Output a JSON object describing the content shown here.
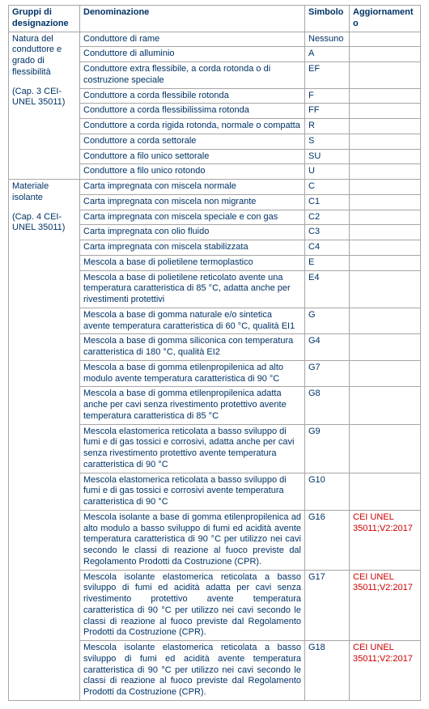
{
  "headers": {
    "c1": "Gruppi di designazione",
    "c2": "Denominazione",
    "c3": "Simbolo",
    "c4": "Aggiornamento"
  },
  "groups": [
    {
      "title": "Natura del conduttore e grado di flessibilità",
      "note": "(Cap. 3 CEI-UNEL 35011)",
      "rows": [
        {
          "d": "Conduttore di rame",
          "s": "Nessuno",
          "u": ""
        },
        {
          "d": "Conduttore di alluminio",
          "s": "A",
          "u": ""
        },
        {
          "d": "Conduttore extra flessibile, a corda rotonda o di costruzione speciale",
          "s": "EF",
          "u": ""
        },
        {
          "d": "Conduttore a corda flessibile rotonda",
          "s": "F",
          "u": ""
        },
        {
          "d": "Conduttore a corda flessibilissima rotonda",
          "s": "FF",
          "u": ""
        },
        {
          "d": "Conduttore a corda rigida rotonda, normale o compatta",
          "s": "R",
          "u": ""
        },
        {
          "d": "Conduttore a corda settorale",
          "s": "S",
          "u": ""
        },
        {
          "d": "Conduttore a filo unico settorale",
          "s": "SU",
          "u": ""
        },
        {
          "d": "Conduttore a filo unico rotondo",
          "s": "U",
          "u": ""
        }
      ]
    },
    {
      "title": "Materiale isolante",
      "note": "(Cap. 4 CEI-UNEL 35011)",
      "rows": [
        {
          "d": "Carta impregnata con miscela normale",
          "s": "C",
          "u": ""
        },
        {
          "d": "Carta impregnata con miscela non migrante",
          "s": "C1",
          "u": ""
        },
        {
          "d": "Carta impregnata con miscela speciale e con gas",
          "s": "C2",
          "u": ""
        },
        {
          "d": "Carta impregnata con olio fluido",
          "s": "C3",
          "u": ""
        },
        {
          "d": "Carta impregnata con miscela stabilizzata",
          "s": "C4",
          "u": ""
        },
        {
          "d": "Mescola a base di polietilene termoplastico",
          "s": "E",
          "u": ""
        },
        {
          "d": "Mescola a base di polietilene reticolato avente una temperatura caratteristica di 85 °C, adatta anche per rivestimenti protettivi",
          "s": "E4",
          "u": ""
        },
        {
          "d": "Mescola a base di gomma naturale e/o sintetica avente temperatura caratteristica di 60 °C, qualità EI1",
          "s": "G",
          "u": ""
        },
        {
          "d": "Mescola a base di gomma siliconica con temperatura caratteristica di 180 °C, qualità EI2",
          "s": "G4",
          "u": ""
        },
        {
          "d": "Mescola a base di gomma etilenpropilenica ad alto modulo avente temperatura caratteristica di 90 °C",
          "s": "G7",
          "u": ""
        },
        {
          "d": "Mescola a base di gomma etilenpropilenica adatta anche per cavi senza rivestimento protettivo avente temperatura caratteristica di 85 °C",
          "s": "G8",
          "u": ""
        },
        {
          "d": "Mescola elastomerica reticolata a basso sviluppo di fumi e di gas tossici e corrosivi, adatta anche per cavi senza rivestimento protettivo avente temperatura caratteristica di 90 °C",
          "s": "G9",
          "u": ""
        },
        {
          "d": "Mescola elastomerica reticolata a basso sviluppo di fumi e di gas tossici e corrosivi avente temperatura caratteristica di 90 °C",
          "s": "G10",
          "u": ""
        },
        {
          "d": "Mescola isolante a base di gomma etilenpropilenica ad alto modulo a basso sviluppo di fumi ed acidità avente temperatura caratteristica di 90 °C per utilizzo nei cavi secondo le classi di reazione al fuoco previste dal Regolamento Prodotti da Costruzione (CPR).",
          "s": "G16",
          "u": "CEI UNEL 35011;V2:2017",
          "justify": true
        },
        {
          "d": "Mescola isolante elastomerica reticolata a basso sviluppo di fumi ed acidità adatta per cavi senza rivestimento protettivo avente temperatura caratteristica di 90 °C per utilizzo nei cavi  secondo le classi di reazione al fuoco previste dal Regolamento Prodotti da Costruzione (CPR).",
          "s": "G17",
          "u": "CEI UNEL 35011;V2:2017",
          "justify": true
        },
        {
          "d": "Mescola isolante elastomerica reticolata a basso sviluppo di fumi ed acidità avente temperatura caratteristica di 90 °C per utilizzo nei cavi secondo le classi di reazione al fuoco previste dal Regolamento Prodotti da Costruzione (CPR).",
          "s": "G18",
          "u": "CEI UNEL 35011;V2:2017",
          "justify": true
        }
      ]
    }
  ]
}
